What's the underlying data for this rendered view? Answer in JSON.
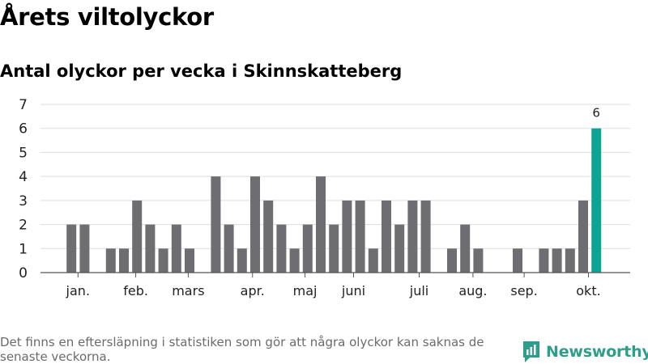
{
  "title": "Årets viltolyckor",
  "subtitle": "Antal olyckor per vecka i Skinnskatteberg",
  "footnote": "Det finns en eftersläpning i statistiken som gör att några olyckor kan saknas de senaste veckorna.",
  "brand": {
    "name": "Newsworthy",
    "icon": "newsworthy-logo-icon",
    "color": "#2f9d8b"
  },
  "colors": {
    "bar": "#6e6d72",
    "highlight": "#0fa393",
    "grid": "#dddddd",
    "axis": "#555555"
  },
  "chart_data": {
    "type": "bar",
    "x": [
      1,
      2,
      3,
      4,
      5,
      6,
      7,
      8,
      9,
      10,
      11,
      12,
      13,
      14,
      15,
      16,
      17,
      18,
      19,
      20,
      21,
      22,
      23,
      24,
      25,
      26,
      27,
      28,
      29,
      30,
      31,
      32,
      33,
      34,
      35,
      36,
      37,
      38,
      39,
      40,
      41,
      42
    ],
    "values": [
      0,
      2,
      2,
      0,
      1,
      1,
      3,
      2,
      1,
      2,
      1,
      0,
      4,
      2,
      1,
      4,
      3,
      2,
      1,
      2,
      4,
      2,
      3,
      3,
      1,
      3,
      2,
      3,
      3,
      0,
      1,
      2,
      1,
      0,
      0,
      1,
      0,
      1,
      1,
      1,
      3,
      6
    ],
    "highlight_index": 41,
    "highlight_label": "6",
    "month_labels": [
      {
        "label": "jan.",
        "week": 2.5
      },
      {
        "label": "feb.",
        "week": 6.9
      },
      {
        "label": "mars",
        "week": 10.9
      },
      {
        "label": "apr.",
        "week": 15.8
      },
      {
        "label": "maj",
        "week": 19.8
      },
      {
        "label": "juni",
        "week": 23.5
      },
      {
        "label": "juli",
        "week": 28.5
      },
      {
        "label": "aug.",
        "week": 32.6
      },
      {
        "label": "sep.",
        "week": 36.5
      },
      {
        "label": "okt.",
        "week": 41.4
      }
    ],
    "yticks": [
      0,
      1,
      2,
      3,
      4,
      5,
      6,
      7
    ],
    "ylim": [
      0,
      7
    ],
    "grid": true
  }
}
